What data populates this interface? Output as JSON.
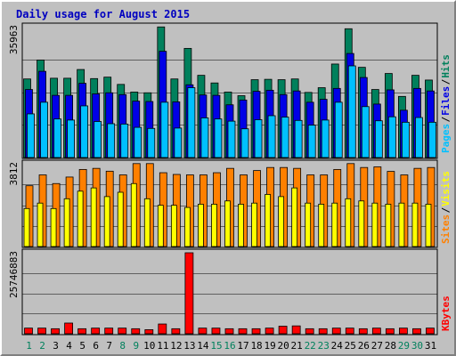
{
  "title": "Daily usage for August 2015",
  "colors": {
    "hits": "#00805c",
    "files": "#0000e6",
    "pages": "#00c0ff",
    "visits": "#ffff00",
    "sites": "#ff8000",
    "kbytes": "#ff0000",
    "weekday_label": "#000000",
    "weekend_label": "#00805c"
  },
  "legend_top": [
    "Pages",
    "Files",
    "Hits"
  ],
  "legend_mid": [
    "Sites",
    "Visits"
  ],
  "legend_bottom": [
    "KBytes"
  ],
  "chart_data": [
    {
      "type": "bar",
      "name": "hits-files-pages",
      "ylabel": "35963",
      "ymax": 35963,
      "categories": [
        "1",
        "2",
        "3",
        "4",
        "5",
        "6",
        "7",
        "8",
        "9",
        "10",
        "11",
        "12",
        "13",
        "14",
        "15",
        "16",
        "17",
        "18",
        "19",
        "20",
        "21",
        "22",
        "23",
        "24",
        "25",
        "26",
        "27",
        "28",
        "29",
        "30",
        "31"
      ],
      "weekend": [
        1,
        2,
        8,
        9,
        15,
        16,
        22,
        23,
        29,
        30
      ],
      "series": [
        {
          "name": "Hits",
          "values": [
            21600,
            26800,
            21800,
            21800,
            24200,
            21700,
            22100,
            20100,
            18000,
            17800,
            35900,
            21600,
            30000,
            22600,
            20500,
            18000,
            17000,
            21400,
            21500,
            21400,
            21600,
            17900,
            19200,
            25700,
            35400,
            24800,
            18700,
            23100,
            16800,
            22600,
            21300
          ]
        },
        {
          "name": "Files",
          "values": [
            18700,
            23700,
            17100,
            17100,
            20400,
            17500,
            17800,
            17300,
            15500,
            15400,
            29200,
            15300,
            20000,
            17200,
            17100,
            14500,
            15800,
            18200,
            18500,
            17300,
            18300,
            15200,
            16000,
            19000,
            28600,
            22000,
            14700,
            18600,
            13000,
            19000,
            18300
          ]
        },
        {
          "name": "Pages",
          "values": [
            12000,
            15200,
            10600,
            10300,
            14200,
            9900,
            9300,
            9200,
            8300,
            8000,
            15200,
            8100,
            19200,
            10900,
            10600,
            10000,
            7900,
            10400,
            11500,
            11100,
            10200,
            8900,
            10300,
            15200,
            25200,
            14000,
            10100,
            11200,
            9700,
            11000,
            9700
          ]
        }
      ]
    },
    {
      "type": "bar",
      "name": "sites-visits",
      "ylabel": "3812",
      "ymax": 3812,
      "categories": [
        "1",
        "2",
        "3",
        "4",
        "5",
        "6",
        "7",
        "8",
        "9",
        "10",
        "11",
        "12",
        "13",
        "14",
        "15",
        "16",
        "17",
        "18",
        "19",
        "20",
        "21",
        "22",
        "23",
        "24",
        "25",
        "26",
        "27",
        "28",
        "29",
        "30",
        "31"
      ],
      "series": [
        {
          "name": "Sites",
          "values": [
            2800,
            3300,
            2900,
            3200,
            3550,
            3600,
            3470,
            3300,
            3820,
            3820,
            3400,
            3320,
            3300,
            3300,
            3400,
            3600,
            3300,
            3500,
            3640,
            3640,
            3600,
            3300,
            3300,
            3550,
            3820,
            3640,
            3670,
            3460,
            3300,
            3600,
            3640
          ]
        },
        {
          "name": "Visits",
          "values": [
            1750,
            2000,
            1750,
            2200,
            2550,
            2700,
            2300,
            2500,
            2900,
            2200,
            1900,
            1900,
            1800,
            1950,
            1950,
            2100,
            1950,
            2000,
            2400,
            2300,
            2700,
            2000,
            1950,
            2000,
            2200,
            2100,
            2000,
            1950,
            2000,
            2000,
            1950
          ]
        }
      ]
    },
    {
      "type": "bar",
      "name": "kbytes",
      "ylabel": "25746883",
      "ymax": 25746883,
      "categories": [
        "1",
        "2",
        "3",
        "4",
        "5",
        "6",
        "7",
        "8",
        "9",
        "10",
        "11",
        "12",
        "13",
        "14",
        "15",
        "16",
        "17",
        "18",
        "19",
        "20",
        "21",
        "22",
        "23",
        "24",
        "25",
        "26",
        "27",
        "28",
        "29",
        "30",
        "31"
      ],
      "series": [
        {
          "name": "KBytes",
          "values": [
            1800000,
            1800000,
            1600000,
            3400000,
            1600000,
            1800000,
            1800000,
            1800000,
            1600000,
            1300000,
            3100000,
            1600000,
            25746883,
            1800000,
            1800000,
            1600000,
            1600000,
            1600000,
            1800000,
            2400000,
            2500000,
            1600000,
            1600000,
            1800000,
            1800000,
            1600000,
            1800000,
            1600000,
            1800000,
            1600000,
            1800000
          ]
        }
      ]
    }
  ]
}
